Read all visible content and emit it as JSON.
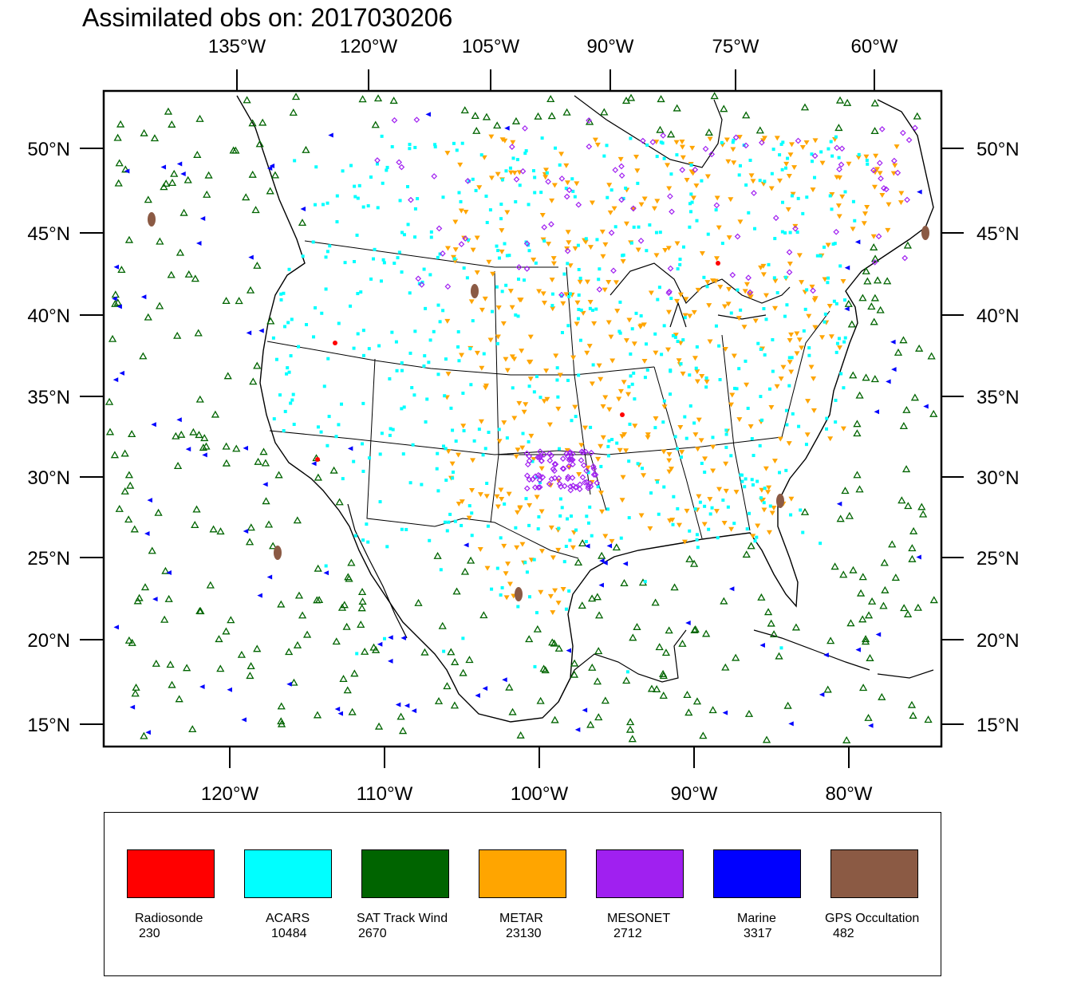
{
  "title": "Assimilated obs on: 2017030206",
  "axes": {
    "top_lon_labels": [
      "135°W",
      "120°W",
      "105°W",
      "90°W",
      "75°W",
      "60°W"
    ],
    "bottom_lon_labels": [
      "120°W",
      "110°W",
      "100°W",
      "90°W",
      "80°W"
    ],
    "lat_labels": [
      "50°N",
      "45°N",
      "40°N",
      "35°N",
      "30°N",
      "25°N",
      "20°N",
      "15°N"
    ]
  },
  "legend": [
    {
      "label": "Radiosonde",
      "count": "230",
      "color": "#ff0000",
      "marker": "filled-dot-icon"
    },
    {
      "label": "ACARS",
      "count": "10484",
      "color": "#00ffff",
      "marker": "filled-square-icon"
    },
    {
      "label": "SAT Track Wind",
      "count": "2670",
      "color": "#006400",
      "marker": "open-triangle-up-icon"
    },
    {
      "label": "METAR",
      "count": "23130",
      "color": "#ffa500",
      "marker": "filled-triangle-down-icon"
    },
    {
      "label": "MESONET",
      "count": "2712",
      "color": "#a020f0",
      "marker": "open-diamond-icon"
    },
    {
      "label": "Marine",
      "count": "3317",
      "color": "#0000ff",
      "marker": "filled-triangle-left-icon"
    },
    {
      "label": "GPS Occultation",
      "count": "482",
      "color": "#8b5a44",
      "marker": "filled-blob-icon"
    }
  ]
}
